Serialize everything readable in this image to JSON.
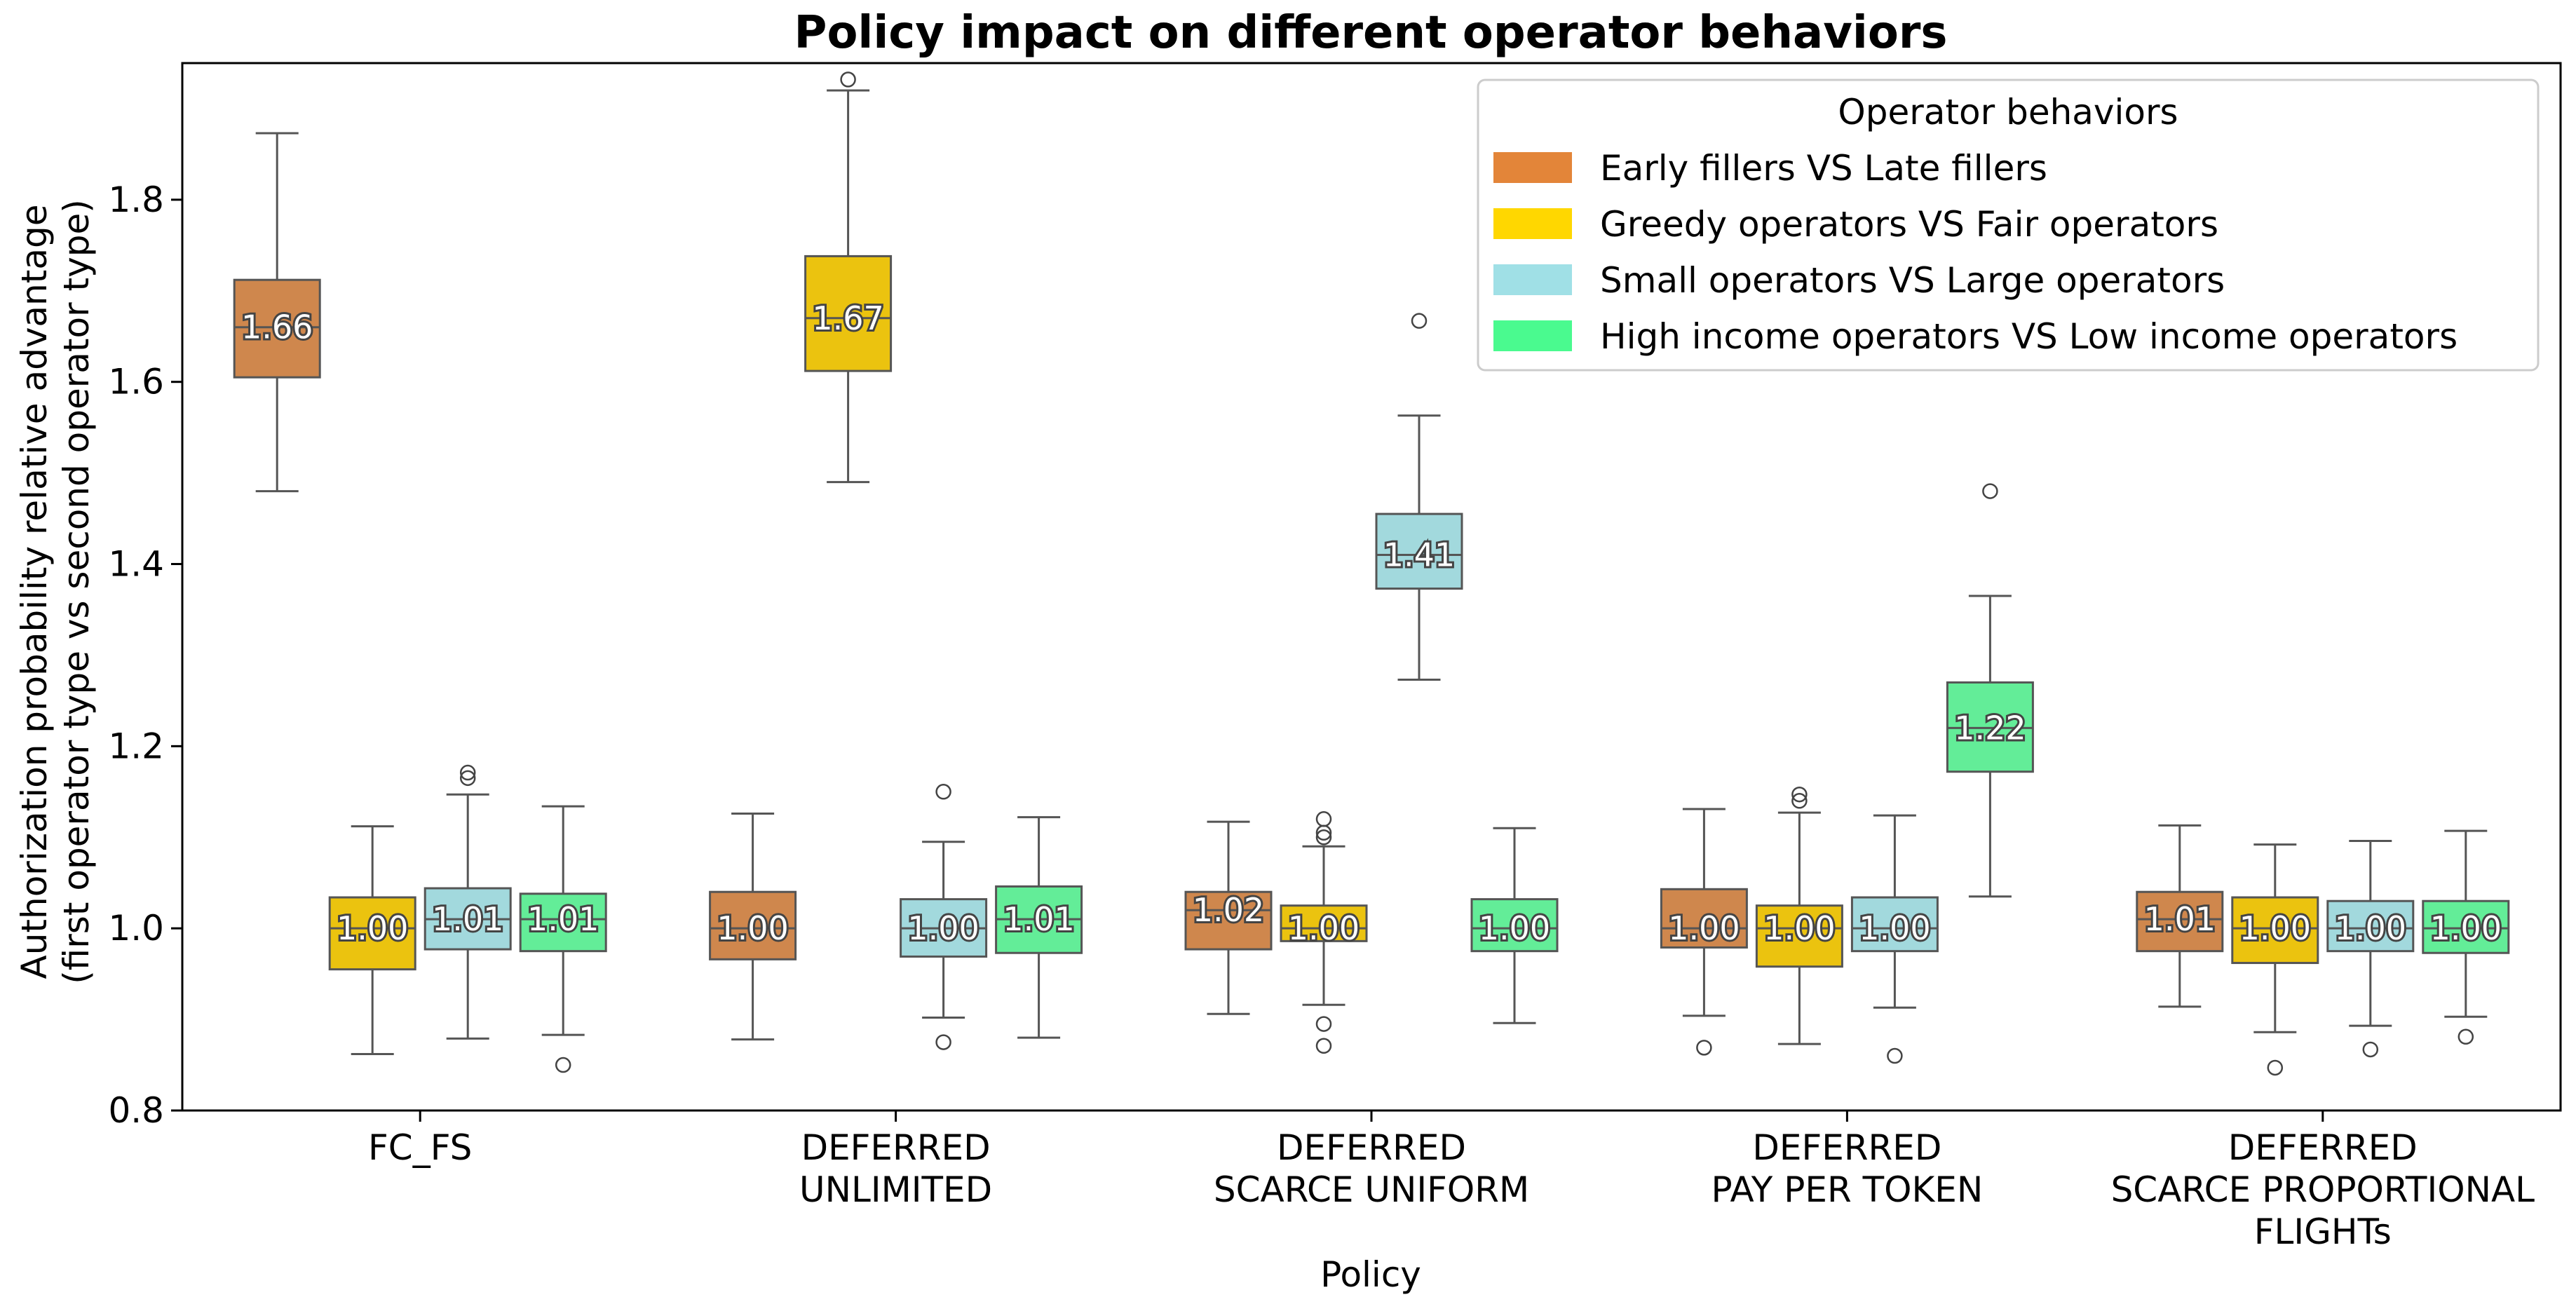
{
  "chart_data": {
    "type": "box",
    "title": "Policy impact on different operator behaviors",
    "xlabel": "Policy",
    "ylabel": [
      "Authorization probability relative advantage",
      "(first operator type vs second operator type)"
    ],
    "ylim": [
      0.8,
      1.95
    ],
    "yticks": [
      "0.8",
      "1.0",
      "1.2",
      "1.4",
      "1.6",
      "1.8"
    ],
    "grid": false,
    "legend_position": "top-right",
    "legend_title": "Operator behaviors",
    "series": [
      {
        "name": "Early fillers VS Late fillers",
        "color": "#e38539"
      },
      {
        "name": "Greedy operators VS Fair operators",
        "color": "#ffd700"
      },
      {
        "name": "Small operators VS Large operators",
        "color": "#a0e0e6"
      },
      {
        "name": "High income operators VS Low income operators",
        "color": "#4afa8f"
      }
    ],
    "box_colors": [
      "#cf874d",
      "#ebc30f",
      "#a2d9dd",
      "#63ed98"
    ],
    "categories": [
      {
        "label": [
          "FC_FS"
        ],
        "boxes": [
          {
            "series": 0,
            "label": "1.66",
            "whislo": 1.48,
            "q1": 1.605,
            "med": 1.66,
            "q3": 1.712,
            "whishi": 1.873,
            "fliers": []
          },
          {
            "series": 1,
            "label": "1.00",
            "whislo": 0.862,
            "q1": 0.955,
            "med": 1.0,
            "q3": 1.034,
            "whishi": 1.112,
            "fliers": []
          },
          {
            "series": 2,
            "label": "1.01",
            "whislo": 0.879,
            "q1": 0.977,
            "med": 1.01,
            "q3": 1.044,
            "whishi": 1.147,
            "fliers": [
              1.165,
              1.171
            ]
          },
          {
            "series": 3,
            "label": "1.01",
            "whislo": 0.883,
            "q1": 0.975,
            "med": 1.01,
            "q3": 1.038,
            "whishi": 1.134,
            "fliers": [
              0.85
            ]
          }
        ]
      },
      {
        "label": [
          "DEFERRED",
          "UNLIMITED"
        ],
        "boxes": [
          {
            "series": 0,
            "label": "1.00",
            "whislo": 0.878,
            "q1": 0.966,
            "med": 1.0,
            "q3": 1.04,
            "whishi": 1.126,
            "fliers": []
          },
          {
            "series": 1,
            "label": "1.67",
            "whislo": 1.49,
            "q1": 1.612,
            "med": 1.67,
            "q3": 1.738,
            "whishi": 1.92,
            "fliers": [
              1.932
            ]
          },
          {
            "series": 2,
            "label": "1.00",
            "whislo": 0.902,
            "q1": 0.969,
            "med": 1.0,
            "q3": 1.032,
            "whishi": 1.095,
            "fliers": [
              0.875,
              1.15
            ]
          },
          {
            "series": 3,
            "label": "1.01",
            "whislo": 0.88,
            "q1": 0.973,
            "med": 1.01,
            "q3": 1.046,
            "whishi": 1.122,
            "fliers": []
          }
        ]
      },
      {
        "label": [
          "DEFERRED",
          "SCARCE UNIFORM"
        ],
        "boxes": [
          {
            "series": 0,
            "label": "1.02",
            "whislo": 0.906,
            "q1": 0.977,
            "med": 1.02,
            "q3": 1.04,
            "whishi": 1.117,
            "fliers": []
          },
          {
            "series": 1,
            "label": "1.00",
            "whislo": 0.916,
            "q1": 0.986,
            "med": 1.0,
            "q3": 1.025,
            "whishi": 1.09,
            "fliers": [
              0.871,
              0.895,
              1.1,
              1.105,
              1.12
            ]
          },
          {
            "series": 2,
            "label": "1.41",
            "whislo": 1.273,
            "q1": 1.373,
            "med": 1.41,
            "q3": 1.455,
            "whishi": 1.563,
            "fliers": [
              1.667
            ]
          },
          {
            "series": 3,
            "label": "1.00",
            "whislo": 0.896,
            "q1": 0.975,
            "med": 1.0,
            "q3": 1.032,
            "whishi": 1.11,
            "fliers": []
          }
        ]
      },
      {
        "label": [
          "DEFERRED",
          "PAY PER TOKEN"
        ],
        "boxes": [
          {
            "series": 0,
            "label": "1.00",
            "whislo": 0.904,
            "q1": 0.979,
            "med": 1.0,
            "q3": 1.043,
            "whishi": 1.131,
            "fliers": [
              0.869
            ]
          },
          {
            "series": 1,
            "label": "1.00",
            "whislo": 0.873,
            "q1": 0.958,
            "med": 1.0,
            "q3": 1.025,
            "whishi": 1.127,
            "fliers": [
              1.14,
              1.147
            ]
          },
          {
            "series": 2,
            "label": "1.00",
            "whislo": 0.913,
            "q1": 0.975,
            "med": 1.0,
            "q3": 1.034,
            "whishi": 1.124,
            "fliers": [
              0.86
            ]
          },
          {
            "series": 3,
            "label": "1.22",
            "whislo": 1.035,
            "q1": 1.172,
            "med": 1.22,
            "q3": 1.27,
            "whishi": 1.365,
            "fliers": [
              1.48
            ]
          }
        ]
      },
      {
        "label": [
          "DEFERRED",
          "SCARCE PROPORTIONAL",
          "FLIGHTs"
        ],
        "boxes": [
          {
            "series": 0,
            "label": "1.01",
            "whislo": 0.914,
            "q1": 0.975,
            "med": 1.01,
            "q3": 1.04,
            "whishi": 1.113,
            "fliers": []
          },
          {
            "series": 1,
            "label": "1.00",
            "whislo": 0.886,
            "q1": 0.962,
            "med": 1.0,
            "q3": 1.034,
            "whishi": 1.092,
            "fliers": [
              0.847
            ]
          },
          {
            "series": 2,
            "label": "1.00",
            "whislo": 0.893,
            "q1": 0.975,
            "med": 1.0,
            "q3": 1.03,
            "whishi": 1.096,
            "fliers": [
              0.867
            ]
          },
          {
            "series": 3,
            "label": "1.00",
            "whislo": 0.903,
            "q1": 0.973,
            "med": 1.0,
            "q3": 1.03,
            "whishi": 1.107,
            "fliers": [
              0.881
            ]
          }
        ]
      }
    ]
  }
}
